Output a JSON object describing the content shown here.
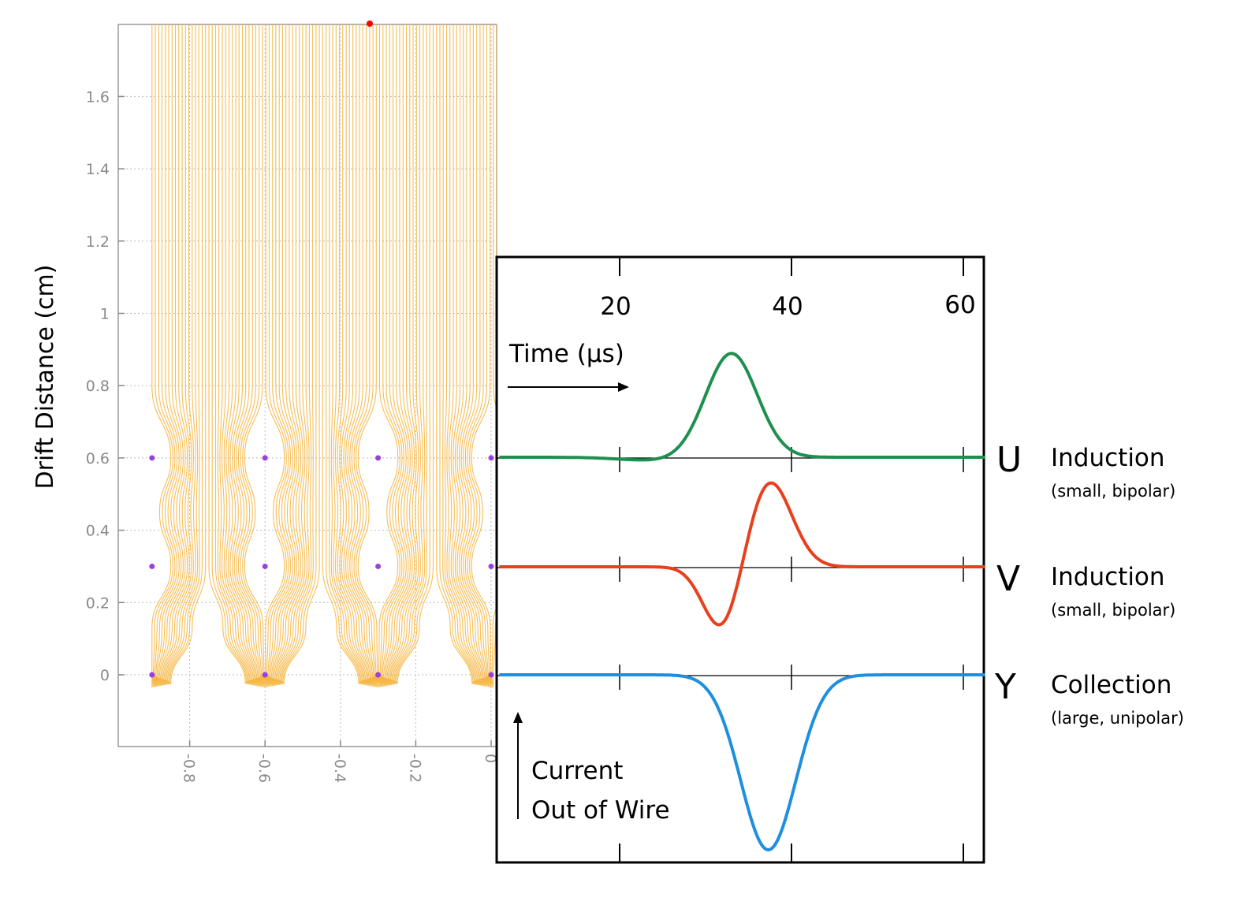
{
  "left_plot": {
    "ylabel": "Drift Distance (cm)",
    "y_ticks": [
      "1.6",
      "1.4",
      "1.2",
      "1",
      "0.8",
      "0.6",
      "0.4",
      "0.2",
      "0"
    ],
    "y_tick_values": [
      1.6,
      1.4,
      1.2,
      1.0,
      0.8,
      0.6,
      0.4,
      0.2,
      0.0
    ],
    "x_ticks": [
      "-0.8",
      "-0.6",
      "-0.4",
      "-0.2",
      "0"
    ],
    "x_tick_values": [
      -0.8,
      -0.6,
      -0.4,
      -0.2,
      0.0
    ],
    "wire_x": [
      -0.9,
      -0.6,
      -0.3,
      0.0
    ],
    "wire_planes_y": [
      0.6,
      0.3,
      0.0
    ],
    "field_line_color": "#f5b745",
    "wire_color": "#9b3fe0",
    "marker_color": "#ff0000"
  },
  "signal_plot": {
    "time_label": "Time (μs)",
    "time_ticks": [
      "20",
      "40",
      "60"
    ],
    "time_tick_values": [
      20,
      40,
      60
    ],
    "current_label_line1": "Current",
    "current_label_line2": "Out of Wire",
    "planes": [
      {
        "letter": "U",
        "type": "Induction",
        "desc": "(small, bipolar)",
        "color": "#1e8f4e"
      },
      {
        "letter": "V",
        "type": "Induction",
        "desc": "(small, bipolar)",
        "color": "#e8401c"
      },
      {
        "letter": "Y",
        "type": "Collection",
        "desc": "(large, unipolar)",
        "color": "#1e8fde"
      }
    ]
  }
}
